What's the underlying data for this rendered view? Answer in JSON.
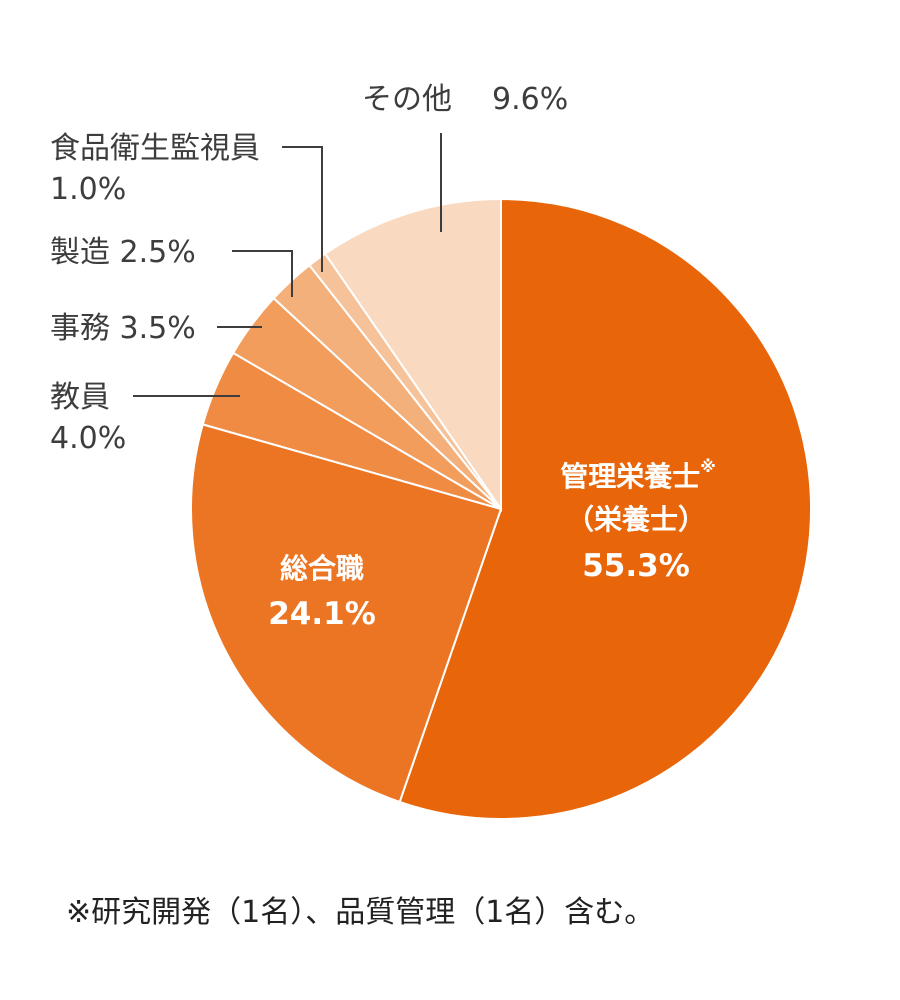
{
  "chart_data": {
    "type": "pie",
    "start": "12 o'clock",
    "direction": "clockwise",
    "slices": [
      {
        "label": "管理栄養士",
        "label_sub": "（栄養士）",
        "mark": "※",
        "value": 55.3,
        "value_text": "55.3%",
        "color": "#E8650A"
      },
      {
        "label": "総合職",
        "value": 24.1,
        "value_text": "24.1%",
        "color": "#EC7524"
      },
      {
        "label": "教員",
        "value": 4.0,
        "value_text": "4.0%",
        "color": "#EF8B43"
      },
      {
        "label": "事務",
        "value": 3.5,
        "value_text": "3.5%",
        "color": "#F29D5C"
      },
      {
        "label": "製造",
        "value": 2.5,
        "value_text": "2.5%",
        "color": "#F4B07B"
      },
      {
        "label": "食品衛生監視員",
        "value": 1.0,
        "value_text": "1.0%",
        "color": "#F6C29A"
      },
      {
        "label": "その他",
        "value": 9.6,
        "value_text": "9.6%",
        "color": "#F9D9BF"
      }
    ],
    "footnote": "※研究開発（1名）、品質管理（1名）含む。"
  }
}
